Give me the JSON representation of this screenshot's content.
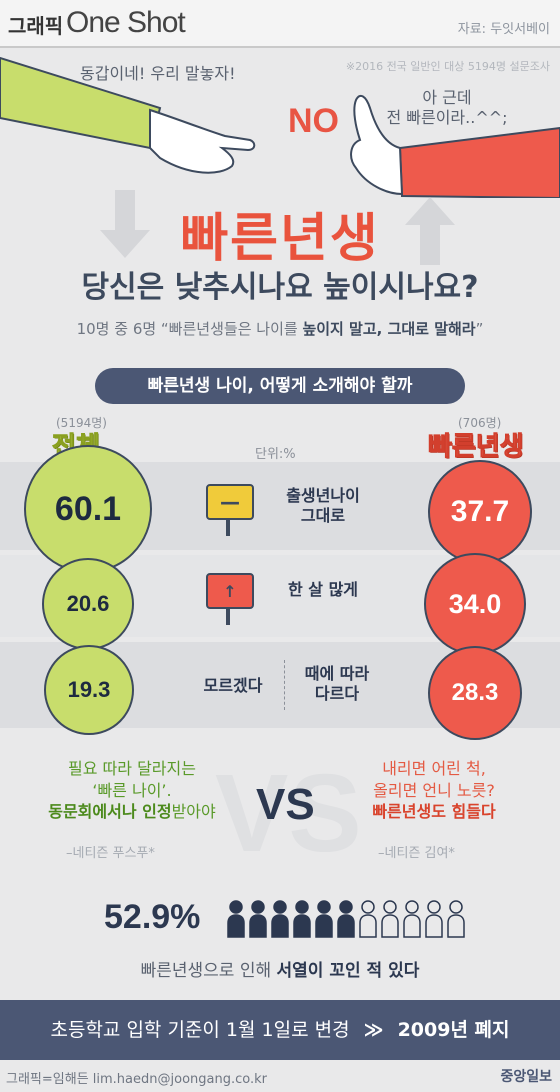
{
  "header": {
    "brand_kr": "그래픽",
    "brand_en": "One Shot",
    "source": "자료: 두잇서베이",
    "survey_note": "※2016 전국 일반인 대상 5194명 설문조사"
  },
  "scene": {
    "speech_left": "동갑이네! 우리 말놓자!",
    "no_text": "NO",
    "speech_right_line1": "아 근데",
    "speech_right_line2": "전 빠른이라..^^;"
  },
  "title": "빠른년생",
  "subtitle": "당신은 낮추시나요 높이시나요?",
  "summary_prefix": "10명 중 6명 “빠른년생들은 나이를 ",
  "summary_bold": "높이지 말고, 그대로 말해라",
  "summary_suffix": "”",
  "banner": "빠른년생 나이, 어떻게 소개해야 할까",
  "groups": {
    "total": {
      "label": "전체",
      "n": "(5194명)"
    },
    "early": {
      "label": "빠른년생",
      "n": "(706명)"
    }
  },
  "unit": "단위:%",
  "rows": [
    {
      "label_line1": "출생년나이",
      "label_line2": "그대로",
      "total": "60.1",
      "early": "37.7",
      "sign": "—"
    },
    {
      "label_line1": "한 살 많게",
      "total": "20.6",
      "early": "34.0",
      "sign": "↑"
    },
    {
      "label_a": "모르겠다",
      "label_b_line1": "때에 따라",
      "label_b_line2": "다르다",
      "total": "19.3",
      "early": "28.3"
    }
  ],
  "vs": "VS",
  "quote_left": {
    "line1": "필요 따라 달라지는",
    "line2": "‘빠른 나이’.",
    "line3_bold": "동문회에서나 인정",
    "line3_rest": "받아야",
    "attribution": "–네티즌 푸스푸*"
  },
  "quote_right": {
    "line1": "내리면 어린 척,",
    "line2": "올리면 언니 노릇?",
    "line3_bold": "빠른년생도 힘들다",
    "attribution": "–네티즌 김여*"
  },
  "stat": {
    "percent": "52.9%",
    "text_prefix": "빠른년생으로 인해 ",
    "text_bold": "서열이 꼬인 적 있다",
    "filled_people": 6,
    "total_people": 11
  },
  "footer": {
    "text": "초등학교 입학 기준이 1월 1일로 변경",
    "arrow": "≫",
    "bold": "2009년 폐지"
  },
  "credit": "그래픽=임해든 lim.haedn@joongang.co.kr",
  "press": "중앙일보",
  "colors": {
    "accent_red": "#e9533d",
    "navy": "#4b5774",
    "green": "#c8dd6c"
  }
}
